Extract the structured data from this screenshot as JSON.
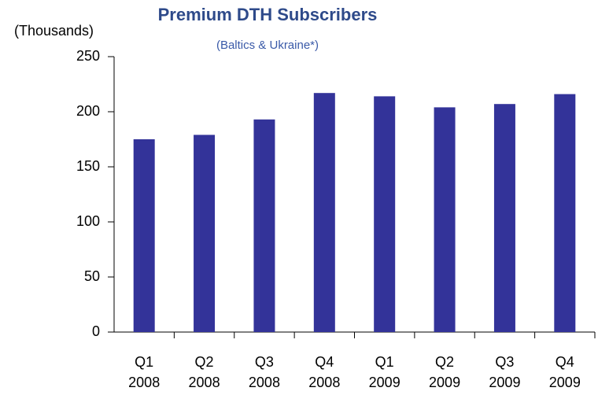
{
  "chart_data": {
    "type": "bar",
    "title": "Premium DTH Subscribers",
    "subtitle": "(Baltics & Ukraine*)",
    "ylabel": "(Thousands)",
    "categories": [
      [
        "Q1",
        "2008"
      ],
      [
        "Q2",
        "2008"
      ],
      [
        "Q3",
        "2008"
      ],
      [
        "Q4",
        "2008"
      ],
      [
        "Q1",
        "2009"
      ],
      [
        "Q2",
        "2009"
      ],
      [
        "Q3",
        "2009"
      ],
      [
        "Q4",
        "2009"
      ]
    ],
    "values": [
      175,
      179,
      193,
      217,
      214,
      204,
      207,
      216
    ],
    "color": "#333399",
    "ylim": [
      0,
      250
    ],
    "yticks": [
      0,
      50,
      100,
      150,
      200,
      250
    ],
    "grid": false
  }
}
